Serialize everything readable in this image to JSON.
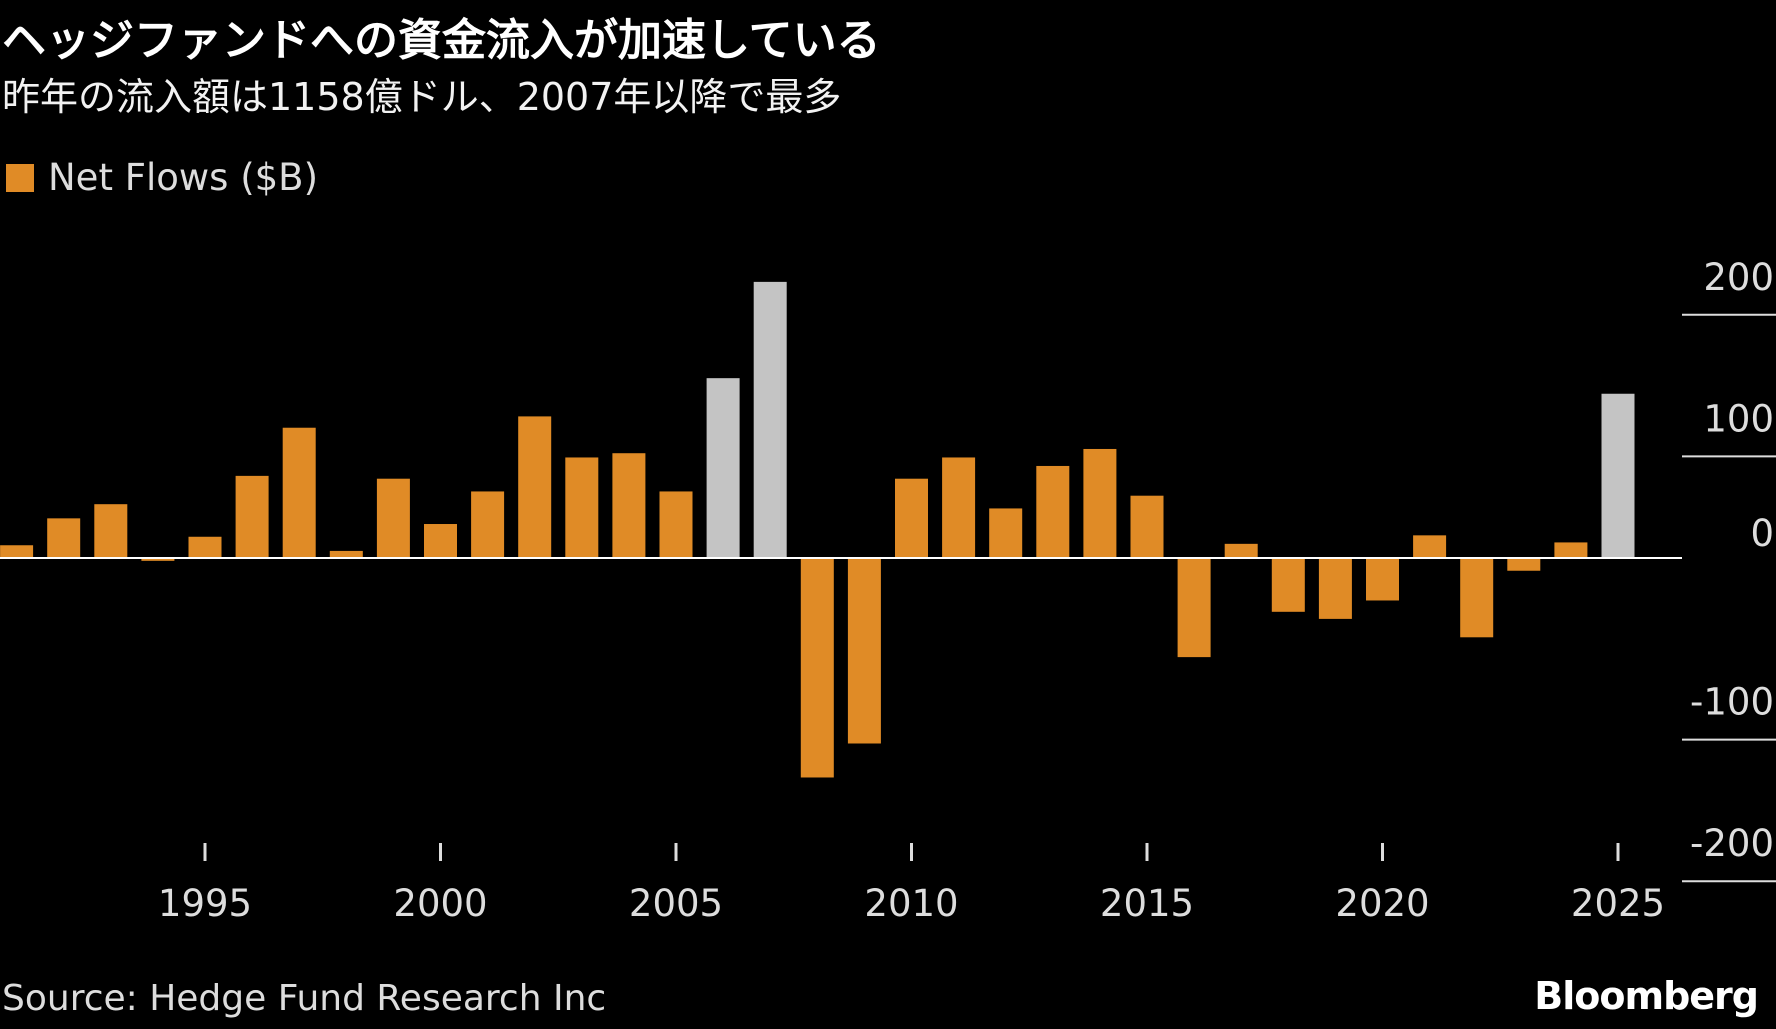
{
  "title": "ヘッジファンドへの資金流入が加速している",
  "subtitle": "昨年の流入額は1158億ドル、2007年以降で最多",
  "source": "Source: Hedge Fund Research Inc",
  "logo": "Bloomberg",
  "colors": {
    "orange": "#E08B26",
    "gray": "#C4C4C4",
    "background": "#000000"
  },
  "chart_data": {
    "type": "bar",
    "legend": {
      "label": "Net Flows ($B)",
      "position": "top-left"
    },
    "x": [
      1991,
      1992,
      1993,
      1994,
      1995,
      1996,
      1997,
      1998,
      1999,
      2000,
      2001,
      2002,
      2003,
      2004,
      2005,
      2006,
      2007,
      2008,
      2009,
      2010,
      2011,
      2012,
      2013,
      2014,
      2015,
      2016,
      2017,
      2018,
      2019,
      2020,
      2021,
      2022,
      2023,
      2024,
      2025
    ],
    "series": [
      {
        "name": "Net Flows ($B)",
        "values": [
          9,
          28,
          38,
          -2,
          15,
          58,
          92,
          5,
          56,
          24,
          47,
          100,
          71,
          74,
          47,
          127,
          195,
          -155,
          -131,
          56,
          71,
          35,
          65,
          77,
          44,
          -70,
          10,
          -38,
          -43,
          -30,
          16,
          -56,
          -9,
          11,
          116
        ],
        "highlighted": [
          2006,
          2007,
          2025
        ]
      }
    ],
    "x_ticks": [
      "1995",
      "2000",
      "2005",
      "2010",
      "2015",
      "2020",
      "2025"
    ],
    "y_ticks": [
      "200",
      "100",
      "0",
      "-100",
      "-200"
    ],
    "ylim": [
      -200,
      200
    ],
    "y_axis_position": "right",
    "grid": false
  }
}
